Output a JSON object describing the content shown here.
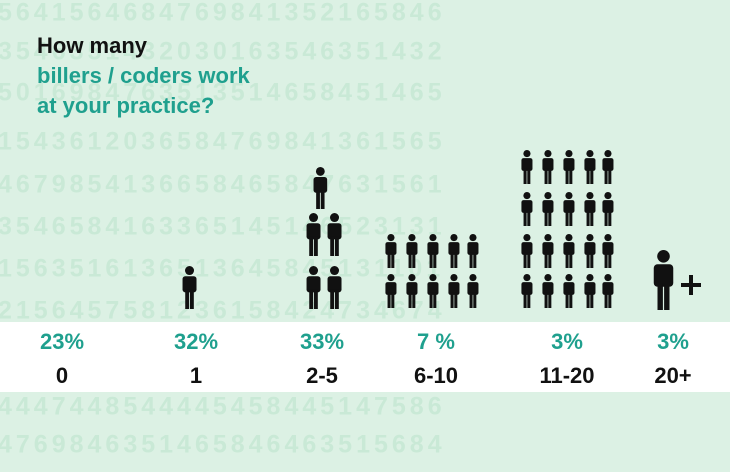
{
  "background_pattern": [
    "5641564684769841352165846",
    "3546351432030163546351432",
    "5016984763513514658451465",
    "1543612036584769841361565",
    "4679854136658465847631561",
    "3546584163365145146523131",
    "1563516136513645845131101",
    "2156457581236158424734674",
    "4447448544445458445147586",
    "4769846351465846463515684"
  ],
  "chart_data": {
    "type": "pictograph",
    "title": "How many",
    "subtitle": [
      "billers / coders work",
      "at your practice?"
    ],
    "categories": [
      "0",
      "1",
      "2-5",
      "6-10",
      "11-20",
      "20+"
    ],
    "values": [
      23,
      32,
      33,
      7,
      3,
      3
    ],
    "value_labels": [
      "23%",
      "32%",
      "33%",
      "7 %",
      "3%",
      "3%"
    ],
    "color": "#1fa08e"
  }
}
